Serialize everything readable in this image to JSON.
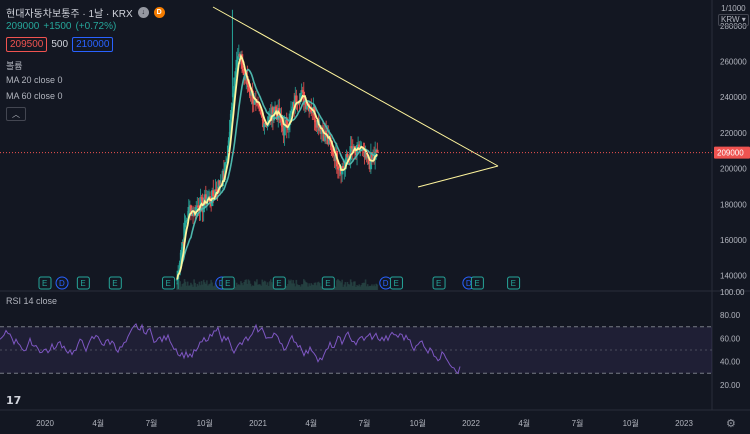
{
  "header": {
    "symbol": "현대자동차보통주 · 1날 · KRX",
    "icon_gray_letter": "↓",
    "icon_orange_letter": "D"
  },
  "quote": {
    "price": "209000",
    "change": "+1500",
    "change_pct": "(+0.72%)"
  },
  "order": {
    "sell_price": "209500",
    "spread": "500",
    "buy_price": "210000"
  },
  "indicators": {
    "volume_label": "볼륨",
    "ma20_label": "MA 20 close 0",
    "ma60_label": "MA 60 close 0",
    "collapse_icon": "chevron-up-icon",
    "rsi_label": "RSI 14 close"
  },
  "currency": {
    "unit": "1/1000",
    "code": "KRW"
  },
  "colors": {
    "background": "#131722",
    "candle_up": "#26a69a",
    "candle_down": "#ef5350",
    "ma20": "#fff59d",
    "ma60": "#4db6ac",
    "trendline": "#fff59d",
    "rsi": "#7e57c2",
    "price_line": "#ef5350"
  },
  "chart_data": {
    "type": "candlestick",
    "title": "현대자동차보통주 · 1날 · KRX",
    "x_ticks": [
      "2020",
      "4월",
      "7월",
      "10월",
      "2021",
      "4월",
      "7월",
      "10월",
      "2022",
      "4월",
      "7월",
      "10월",
      "2023"
    ],
    "price_ticks": [
      "280000",
      "260000",
      "240000",
      "220000",
      "200000",
      "180000",
      "160000",
      "140000"
    ],
    "price_ylim": [
      132000,
      290000
    ],
    "current_price_label": "209000",
    "rsi_ticks": [
      "100.00",
      "80.00",
      "60.00",
      "40.00",
      "20.00"
    ],
    "rsi_ylim": [
      0,
      100
    ],
    "rsi_bands": [
      30,
      70
    ],
    "event_markers": [
      {
        "label": "E",
        "t": 0.0
      },
      {
        "label": "D",
        "t": 0.08
      },
      {
        "label": "E",
        "t": 0.18
      },
      {
        "label": "E",
        "t": 0.33
      },
      {
        "label": "E",
        "t": 0.58
      },
      {
        "label": "D",
        "t": 0.83
      },
      {
        "label": "E",
        "t": 0.86
      },
      {
        "label": "E",
        "t": 1.1
      },
      {
        "label": "E",
        "t": 1.33
      },
      {
        "label": "D",
        "t": 1.6
      },
      {
        "label": "E",
        "t": 1.65
      },
      {
        "label": "E",
        "t": 1.85
      },
      {
        "label": "D",
        "t": 1.99
      },
      {
        "label": "E",
        "t": 2.03
      },
      {
        "label": "E",
        "t": 2.2
      }
    ],
    "ohlc_daily_sampled": [
      {
        "t": 0.62,
        "c": 138000
      },
      {
        "t": 0.64,
        "c": 155000
      },
      {
        "t": 0.66,
        "c": 170000
      },
      {
        "t": 0.68,
        "c": 178000
      },
      {
        "t": 0.7,
        "c": 175000
      },
      {
        "t": 0.72,
        "c": 181000
      },
      {
        "t": 0.74,
        "c": 179000
      },
      {
        "t": 0.76,
        "c": 184000
      },
      {
        "t": 0.78,
        "c": 182000
      },
      {
        "t": 0.8,
        "c": 188000
      },
      {
        "t": 0.82,
        "c": 192000
      },
      {
        "t": 0.84,
        "c": 196000
      },
      {
        "t": 0.86,
        "c": 212000
      },
      {
        "t": 0.88,
        "c": 238000
      },
      {
        "t": 0.9,
        "c": 265000
      },
      {
        "t": 0.92,
        "c": 260000
      },
      {
        "t": 0.94,
        "c": 250000
      },
      {
        "t": 0.96,
        "c": 245000
      },
      {
        "t": 0.98,
        "c": 238000
      },
      {
        "t": 1.0,
        "c": 232000
      },
      {
        "t": 1.02,
        "c": 228000
      },
      {
        "t": 1.04,
        "c": 226000
      },
      {
        "t": 1.06,
        "c": 229000
      },
      {
        "t": 1.08,
        "c": 234000
      },
      {
        "t": 1.1,
        "c": 228000
      },
      {
        "t": 1.12,
        "c": 222000
      },
      {
        "t": 1.14,
        "c": 226000
      },
      {
        "t": 1.16,
        "c": 232000
      },
      {
        "t": 1.18,
        "c": 240000
      },
      {
        "t": 1.2,
        "c": 242000
      },
      {
        "t": 1.22,
        "c": 238000
      },
      {
        "t": 1.24,
        "c": 236000
      },
      {
        "t": 1.26,
        "c": 232000
      },
      {
        "t": 1.28,
        "c": 226000
      },
      {
        "t": 1.3,
        "c": 222000
      },
      {
        "t": 1.32,
        "c": 218000
      },
      {
        "t": 1.34,
        "c": 212000
      },
      {
        "t": 1.36,
        "c": 208000
      },
      {
        "t": 1.38,
        "c": 202000
      },
      {
        "t": 1.4,
        "c": 200000
      },
      {
        "t": 1.42,
        "c": 206000
      },
      {
        "t": 1.44,
        "c": 210000
      },
      {
        "t": 1.46,
        "c": 208000
      },
      {
        "t": 1.48,
        "c": 212000
      },
      {
        "t": 1.5,
        "c": 206000
      },
      {
        "t": 1.52,
        "c": 203000
      },
      {
        "t": 1.54,
        "c": 205000
      },
      {
        "t": 1.56,
        "c": 209000
      }
    ]
  }
}
